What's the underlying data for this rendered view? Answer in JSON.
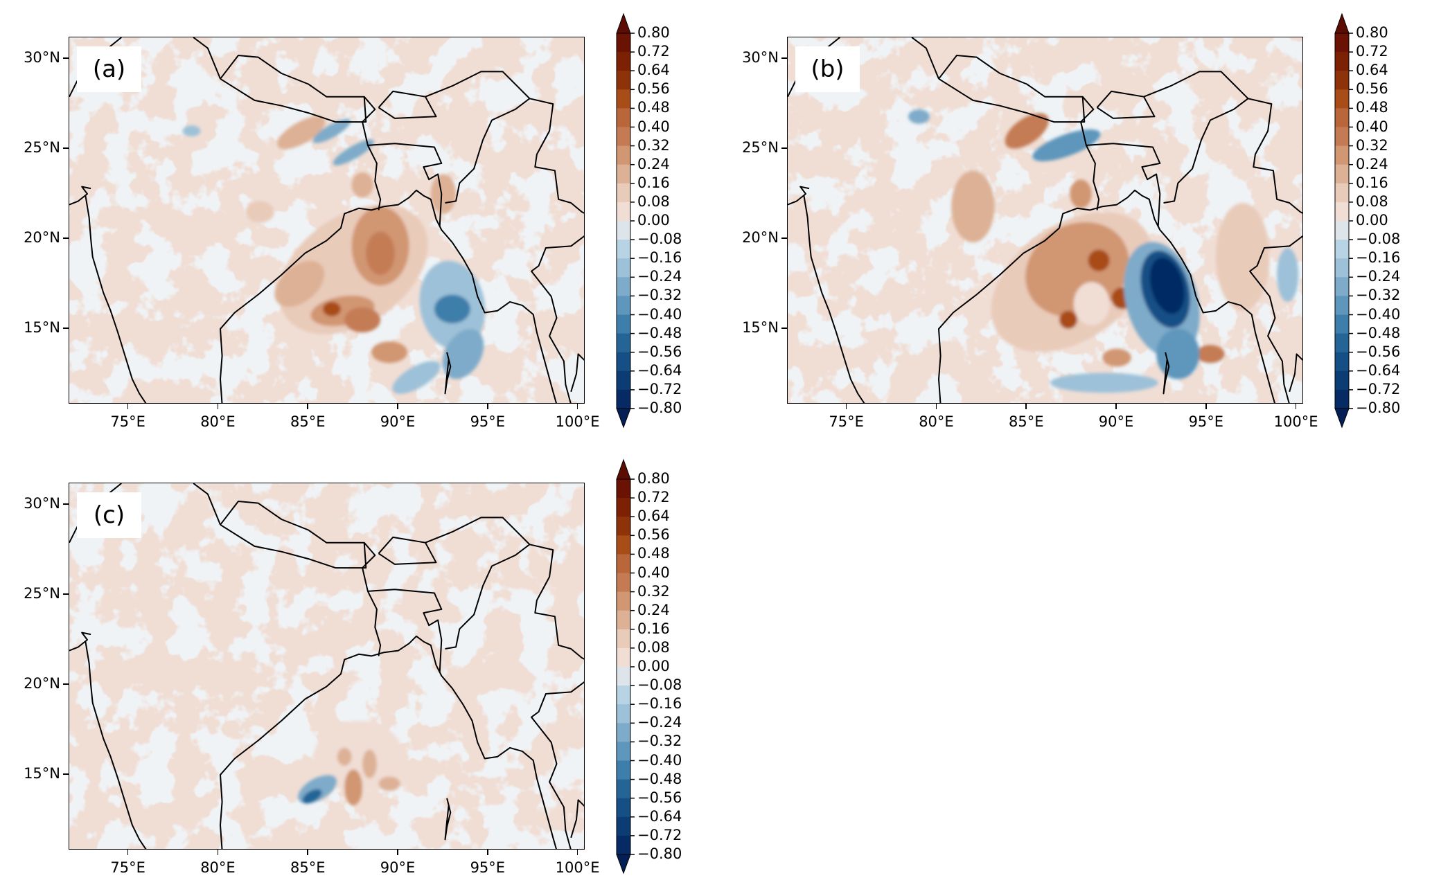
{
  "figure": {
    "panels": [
      {
        "label": "(a)"
      },
      {
        "label": "(b)"
      },
      {
        "label": "(c)"
      }
    ]
  },
  "chart_data": {
    "type": "heatmap",
    "subtype": "filled-contour map",
    "panels": [
      "(a)",
      "(b)",
      "(c)"
    ],
    "x_ticks": [
      "75°E",
      "80°E",
      "85°E",
      "90°E",
      "95°E",
      "100°E"
    ],
    "x_tick_values": [
      75,
      80,
      85,
      90,
      95,
      100
    ],
    "y_ticks": [
      "30°N",
      "25°N",
      "20°N",
      "15°N"
    ],
    "y_tick_values": [
      30,
      25,
      20,
      15
    ],
    "xlim": [
      71.7,
      100.4
    ],
    "ylim": [
      10.8,
      31.2
    ],
    "colorbar": {
      "labels": [
        "0.80",
        "0.72",
        "0.64",
        "0.56",
        "0.48",
        "0.40",
        "0.32",
        "0.24",
        "0.16",
        "0.08",
        "0.00",
        "−0.08",
        "−0.16",
        "−0.24",
        "−0.32",
        "−0.40",
        "−0.48",
        "−0.56",
        "−0.64",
        "−0.72",
        "−0.80"
      ],
      "range": [
        -0.8,
        0.8
      ],
      "step": 0.08,
      "extend": "both",
      "colors": [
        "#6a1204",
        "#7d2105",
        "#8d3209",
        "#a84c18",
        "#b9663a",
        "#c47b54",
        "#d19672",
        "#ddb195",
        "#e9cbba",
        "#f0ded5",
        "#dde4ea",
        "#b8d3e3",
        "#9dc1d8",
        "#7eabc9",
        "#5f96bb",
        "#3e7eaa",
        "#246596",
        "#164f85",
        "#0c3c74",
        "#052a64"
      ],
      "extend_colors": {
        "max": "#5c0c02",
        "min": "#031f55"
      }
    },
    "summary": {
      "(a)": "positive anomalies over western/central Bay of Bengal up to ~0.5, negative to ~-0.45 over eastern Bay near 93°E,16°N",
      "(b)": "strong positive ring over Bay of Bengal up to ~0.6, intense negative core below -0.8 near 92.7°E,17°N",
      "(c)": "mostly near zero; small negative patch ~-0.5 near 85°E,14°N and positive patches ~0.3 near 87-88°E,14-16°N"
    }
  }
}
